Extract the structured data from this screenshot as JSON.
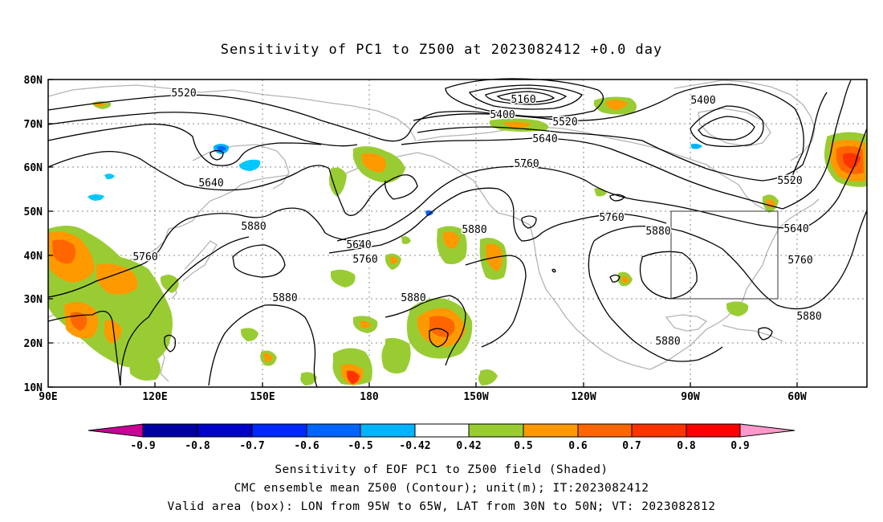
{
  "title": "Sensitivity of PC1 to Z500 at 2023082412 +0.0 day",
  "map": {
    "lon_labels": [
      "90E",
      "120E",
      "150E",
      "180",
      "150W",
      "120W",
      "90W",
      "60W"
    ],
    "lat_labels": [
      "80N",
      "70N",
      "60N",
      "50N",
      "40N",
      "30N",
      "20N",
      "10N"
    ],
    "gridlines": "dotted",
    "land_outline_color": "#b4b4b4",
    "contour_color": "#000000",
    "contour_labels": [
      "5520",
      "5160",
      "5400",
      "5520",
      "5400",
      "5640",
      "5760",
      "5640",
      "5880",
      "5760",
      "5640",
      "5760",
      "5880",
      "5760",
      "5880",
      "5520",
      "5640",
      "5760",
      "5880",
      "5880",
      "5880",
      "5880"
    ],
    "valid_box": {
      "lon_range": [
        "95W",
        "65W"
      ],
      "lat_range": [
        "30N",
        "50N"
      ]
    }
  },
  "colorbar": {
    "labels": [
      "-0.9",
      "-0.8",
      "-0.7",
      "-0.6",
      "-0.5",
      "-0.42",
      "0.42",
      "0.5",
      "0.6",
      "0.7",
      "0.8",
      "0.9"
    ],
    "colors": [
      "#c80096",
      "#0000a0",
      "#0000c8",
      "#0028ff",
      "#0064ff",
      "#00b4ff",
      "#00c8ff",
      "#ffffff",
      "#99cc33",
      "#ff9900",
      "#ff6600",
      "#ff3300",
      "#ff0000",
      "#ff99cc"
    ]
  },
  "captions": [
    "Sensitivity of EOF PC1 to Z500 field (Shaded)",
    "CMC ensemble mean Z500 (Contour); unit(m); IT:2023082412",
    "Valid area (box): LON from 95W to 65W, LAT from 30N to 50N; VT: 2023082812"
  ]
}
